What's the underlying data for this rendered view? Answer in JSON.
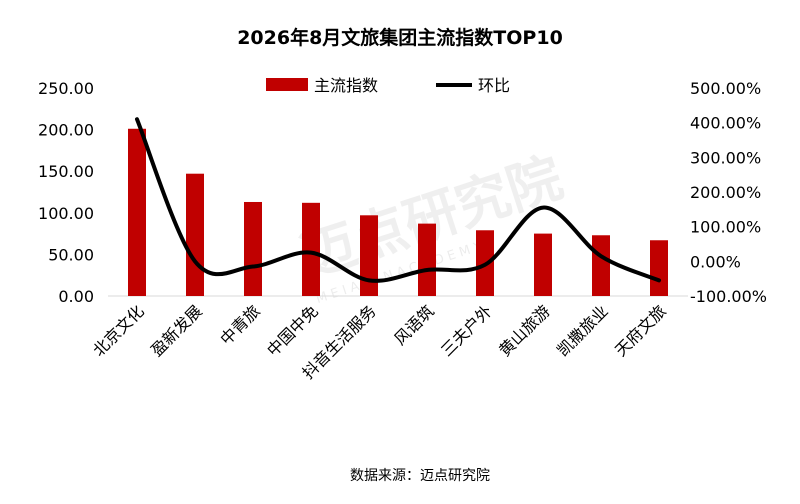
{
  "chart_data": {
    "type": "bar",
    "title": "2026年8月文旅集团主流指数TOP10",
    "categories": [
      "北京文化",
      "盈新发展",
      "中青旅",
      "中国中免",
      "抖音生活服务",
      "风语筑",
      "三夫户外",
      "黄山旅游",
      "凯撒旅业",
      "天府文旅"
    ],
    "series": [
      {
        "name": "主流指数",
        "type": "bar",
        "axis": "left",
        "color": "#c00000",
        "values": [
          201,
          147,
          113,
          112,
          97,
          87,
          79,
          75,
          73,
          67
        ]
      },
      {
        "name": "环比",
        "type": "line",
        "axis": "right",
        "color": "#000000",
        "values": [
          410,
          0,
          -15,
          25,
          -55,
          -25,
          -10,
          155,
          15,
          -55
        ]
      }
    ],
    "yleft": {
      "min": 0,
      "max": 250,
      "ticks": [
        "0.00",
        "50.00",
        "100.00",
        "150.00",
        "200.00",
        "250.00"
      ]
    },
    "yright": {
      "min": -100,
      "max": 500,
      "unit": "%",
      "ticks": [
        "-100.00%",
        "0.00%",
        "100.00%",
        "200.00%",
        "300.00%",
        "400.00%",
        "500.00%"
      ]
    },
    "legend": "top-center",
    "grid": false,
    "source": "数据来源：迈点研究院"
  },
  "watermark": {
    "text": "迈点研究院",
    "subtext": "M E I A D I N   A C A D E M Y"
  }
}
